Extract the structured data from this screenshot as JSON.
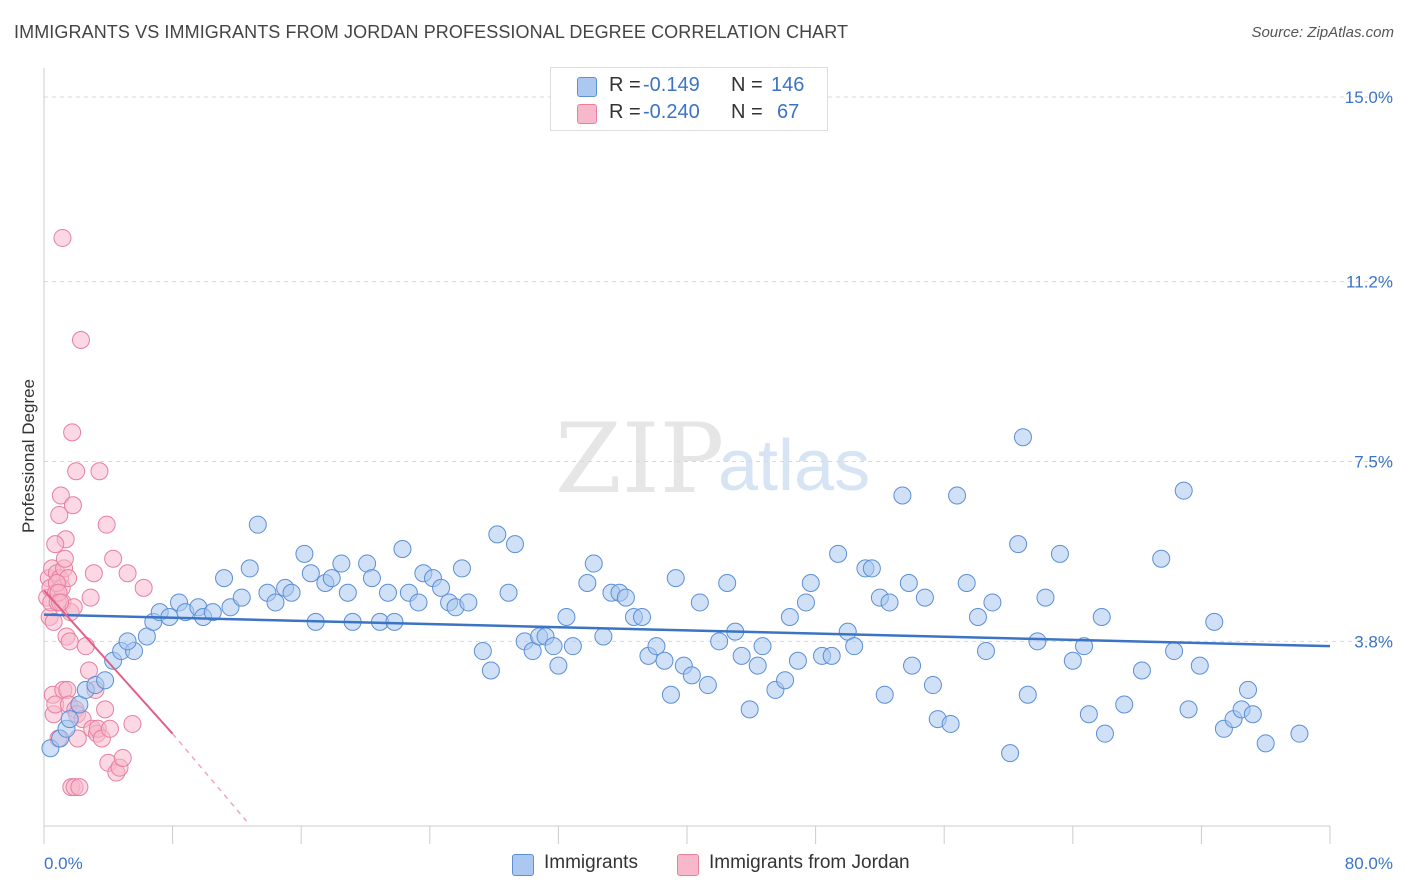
{
  "header": {
    "title": "IMMIGRANTS VS IMMIGRANTS FROM JORDAN PROFESSIONAL DEGREE CORRELATION CHART",
    "source": "Source: ZipAtlas.com"
  },
  "watermark": {
    "zip": "ZIP",
    "atlas": "atlas"
  },
  "legend": {
    "rows": [
      {
        "r_key": "R =",
        "r_value": "-0.149",
        "n_key": "N =",
        "n_value": "146",
        "color": "#aac8f0",
        "border": "#5b8fd6"
      },
      {
        "r_key": "R =",
        "r_value": "-0.240",
        "n_key": "N =",
        "n_value": "67",
        "color": "#f7b8cc",
        "border": "#e87fa0"
      }
    ]
  },
  "bottom_legend": {
    "items": [
      {
        "label": "Immigrants",
        "color": "#aac8f0",
        "border": "#5b8fd6"
      },
      {
        "label": "Immigrants from Jordan",
        "color": "#f7b8cc",
        "border": "#e87fa0"
      }
    ]
  },
  "chart_data": {
    "type": "scatter",
    "ylabel": "Professional Degree",
    "xlabel": "",
    "xlim": [
      0,
      80
    ],
    "ylim": [
      0,
      15.5
    ],
    "x_tick_labels": [
      "0.0%",
      "80.0%"
    ],
    "y_ticks": [
      3.8,
      7.5,
      11.2,
      15.0
    ],
    "y_tick_labels": [
      "3.8%",
      "7.5%",
      "11.2%",
      "15.0%"
    ],
    "grid": "horizontal dashed",
    "colors": {
      "immigrants": "#3b74c4",
      "jordan": "#e0608a"
    },
    "series": [
      {
        "name": "Immigrants",
        "trend": {
          "x": [
            0,
            80
          ],
          "y": [
            4.35,
            3.7
          ]
        },
        "points": [
          [
            0.4,
            1.6
          ],
          [
            1.0,
            1.8
          ],
          [
            1.4,
            2.0
          ],
          [
            1.6,
            2.2
          ],
          [
            2.2,
            2.5
          ],
          [
            2.6,
            2.8
          ],
          [
            3.2,
            2.9
          ],
          [
            3.8,
            3.0
          ],
          [
            4.3,
            3.4
          ],
          [
            4.8,
            3.6
          ],
          [
            5.6,
            3.6
          ],
          [
            5.2,
            3.8
          ],
          [
            6.4,
            3.9
          ],
          [
            6.8,
            4.2
          ],
          [
            7.2,
            4.4
          ],
          [
            7.8,
            4.3
          ],
          [
            8.4,
            4.6
          ],
          [
            8.8,
            4.4
          ],
          [
            9.6,
            4.5
          ],
          [
            9.9,
            4.3
          ],
          [
            10.5,
            4.4
          ],
          [
            11.2,
            5.1
          ],
          [
            11.6,
            4.5
          ],
          [
            12.3,
            4.7
          ],
          [
            12.8,
            5.3
          ],
          [
            13.3,
            6.2
          ],
          [
            13.9,
            4.8
          ],
          [
            14.4,
            4.6
          ],
          [
            15.0,
            4.9
          ],
          [
            15.4,
            4.8
          ],
          [
            16.2,
            5.6
          ],
          [
            16.6,
            5.2
          ],
          [
            16.9,
            4.2
          ],
          [
            17.5,
            5.0
          ],
          [
            17.9,
            5.1
          ],
          [
            18.5,
            5.4
          ],
          [
            18.9,
            4.8
          ],
          [
            19.2,
            4.2
          ],
          [
            20.1,
            5.4
          ],
          [
            20.4,
            5.1
          ],
          [
            20.9,
            4.2
          ],
          [
            21.4,
            4.8
          ],
          [
            21.8,
            4.2
          ],
          [
            22.3,
            5.7
          ],
          [
            22.7,
            4.8
          ],
          [
            23.3,
            4.6
          ],
          [
            23.6,
            5.2
          ],
          [
            24.2,
            5.1
          ],
          [
            24.7,
            4.9
          ],
          [
            25.2,
            4.6
          ],
          [
            25.6,
            4.5
          ],
          [
            26.0,
            5.3
          ],
          [
            26.4,
            4.6
          ],
          [
            27.3,
            3.6
          ],
          [
            27.8,
            3.2
          ],
          [
            28.2,
            6.0
          ],
          [
            28.9,
            4.8
          ],
          [
            29.3,
            5.8
          ],
          [
            29.9,
            3.8
          ],
          [
            30.4,
            3.6
          ],
          [
            30.8,
            3.9
          ],
          [
            31.2,
            3.9
          ],
          [
            31.7,
            3.7
          ],
          [
            32.0,
            3.3
          ],
          [
            32.5,
            4.3
          ],
          [
            32.9,
            3.7
          ],
          [
            33.8,
            5.0
          ],
          [
            34.2,
            5.4
          ],
          [
            34.8,
            3.9
          ],
          [
            35.3,
            4.8
          ],
          [
            35.8,
            4.8
          ],
          [
            36.2,
            4.7
          ],
          [
            36.7,
            4.3
          ],
          [
            37.2,
            4.3
          ],
          [
            37.6,
            3.5
          ],
          [
            38.1,
            3.7
          ],
          [
            38.6,
            3.4
          ],
          [
            39.0,
            2.7
          ],
          [
            39.3,
            5.1
          ],
          [
            39.8,
            3.3
          ],
          [
            40.3,
            3.1
          ],
          [
            40.8,
            4.6
          ],
          [
            41.3,
            2.9
          ],
          [
            42.0,
            3.8
          ],
          [
            42.5,
            5.0
          ],
          [
            43.0,
            4.0
          ],
          [
            43.4,
            3.5
          ],
          [
            43.9,
            2.4
          ],
          [
            44.4,
            3.3
          ],
          [
            44.7,
            3.7
          ],
          [
            45.5,
            2.8
          ],
          [
            46.1,
            3.0
          ],
          [
            46.4,
            4.3
          ],
          [
            46.9,
            3.4
          ],
          [
            47.4,
            4.6
          ],
          [
            47.7,
            5.0
          ],
          [
            48.4,
            3.5
          ],
          [
            49.0,
            3.5
          ],
          [
            49.4,
            5.6
          ],
          [
            50.0,
            4.0
          ],
          [
            50.4,
            3.7
          ],
          [
            51.1,
            5.3
          ],
          [
            51.5,
            5.3
          ],
          [
            52.0,
            4.7
          ],
          [
            52.3,
            2.7
          ],
          [
            52.6,
            4.6
          ],
          [
            53.4,
            6.8
          ],
          [
            53.8,
            5.0
          ],
          [
            54.0,
            3.3
          ],
          [
            54.8,
            4.7
          ],
          [
            55.3,
            2.9
          ],
          [
            55.6,
            2.2
          ],
          [
            56.4,
            2.1
          ],
          [
            56.8,
            6.8
          ],
          [
            57.4,
            5.0
          ],
          [
            58.1,
            4.3
          ],
          [
            58.6,
            3.6
          ],
          [
            59.0,
            4.6
          ],
          [
            60.1,
            1.5
          ],
          [
            60.6,
            5.8
          ],
          [
            61.2,
            2.7
          ],
          [
            61.8,
            3.8
          ],
          [
            62.3,
            4.7
          ],
          [
            63.2,
            5.6
          ],
          [
            64.0,
            3.4
          ],
          [
            64.7,
            3.7
          ],
          [
            65.0,
            2.3
          ],
          [
            65.8,
            4.3
          ],
          [
            66.0,
            1.9
          ],
          [
            67.2,
            2.5
          ],
          [
            68.3,
            3.2
          ],
          [
            69.5,
            5.5
          ],
          [
            70.3,
            3.6
          ],
          [
            70.9,
            6.9
          ],
          [
            71.2,
            2.4
          ],
          [
            71.9,
            3.3
          ],
          [
            72.8,
            4.2
          ],
          [
            73.4,
            2.0
          ],
          [
            74.0,
            2.2
          ],
          [
            74.5,
            2.4
          ],
          [
            74.9,
            2.8
          ],
          [
            75.2,
            2.3
          ],
          [
            76.0,
            1.7
          ],
          [
            78.1,
            1.9
          ],
          [
            60.9,
            8.0
          ]
        ]
      },
      {
        "name": "Immigrants from Jordan",
        "trend": {
          "x": [
            0,
            8
          ],
          "y": [
            4.85,
            1.9
          ]
        },
        "trend_extension": {
          "x": [
            8,
            12.6
          ],
          "y": [
            1.9,
            0.1
          ]
        },
        "points": [
          [
            0.2,
            4.7
          ],
          [
            0.3,
            5.1
          ],
          [
            0.35,
            4.3
          ],
          [
            0.4,
            4.9
          ],
          [
            0.45,
            4.6
          ],
          [
            0.5,
            5.3
          ],
          [
            0.55,
            2.7
          ],
          [
            0.6,
            4.2
          ],
          [
            0.6,
            2.3
          ],
          [
            0.7,
            2.5
          ],
          [
            0.75,
            4.8
          ],
          [
            0.8,
            5.2
          ],
          [
            0.85,
            4.6
          ],
          [
            0.9,
            1.8
          ],
          [
            0.95,
            6.4
          ],
          [
            1.0,
            5.1
          ],
          [
            1.05,
            6.8
          ],
          [
            1.1,
            4.9
          ],
          [
            1.15,
            4.6
          ],
          [
            1.2,
            2.8
          ],
          [
            1.25,
            5.3
          ],
          [
            1.3,
            5.5
          ],
          [
            1.35,
            5.9
          ],
          [
            1.4,
            3.9
          ],
          [
            1.45,
            2.8
          ],
          [
            1.5,
            5.1
          ],
          [
            1.55,
            2.5
          ],
          [
            1.6,
            3.8
          ],
          [
            1.65,
            4.4
          ],
          [
            1.7,
            0.8
          ],
          [
            1.75,
            8.1
          ],
          [
            1.8,
            6.6
          ],
          [
            1.85,
            4.5
          ],
          [
            1.9,
            0.8
          ],
          [
            1.95,
            2.4
          ],
          [
            2.0,
            7.3
          ],
          [
            2.05,
            2.3
          ],
          [
            2.1,
            1.8
          ],
          [
            2.2,
            0.8
          ],
          [
            2.3,
            10.0
          ],
          [
            2.4,
            2.2
          ],
          [
            2.6,
            3.7
          ],
          [
            2.8,
            3.2
          ],
          [
            2.9,
            4.7
          ],
          [
            3.0,
            2.0
          ],
          [
            3.1,
            5.2
          ],
          [
            3.2,
            2.8
          ],
          [
            3.3,
            1.9
          ],
          [
            3.35,
            2.0
          ],
          [
            3.45,
            7.3
          ],
          [
            3.6,
            1.8
          ],
          [
            3.8,
            2.4
          ],
          [
            3.9,
            6.2
          ],
          [
            4.0,
            1.3
          ],
          [
            4.1,
            2.0
          ],
          [
            4.3,
            5.5
          ],
          [
            4.5,
            1.1
          ],
          [
            4.7,
            1.2
          ],
          [
            4.9,
            1.4
          ],
          [
            5.2,
            5.2
          ],
          [
            5.5,
            2.1
          ],
          [
            6.2,
            4.9
          ],
          [
            1.15,
            12.1
          ],
          [
            0.7,
            5.8
          ],
          [
            0.8,
            5.0
          ],
          [
            0.9,
            4.8
          ],
          [
            1.0,
            4.6
          ]
        ]
      }
    ]
  }
}
